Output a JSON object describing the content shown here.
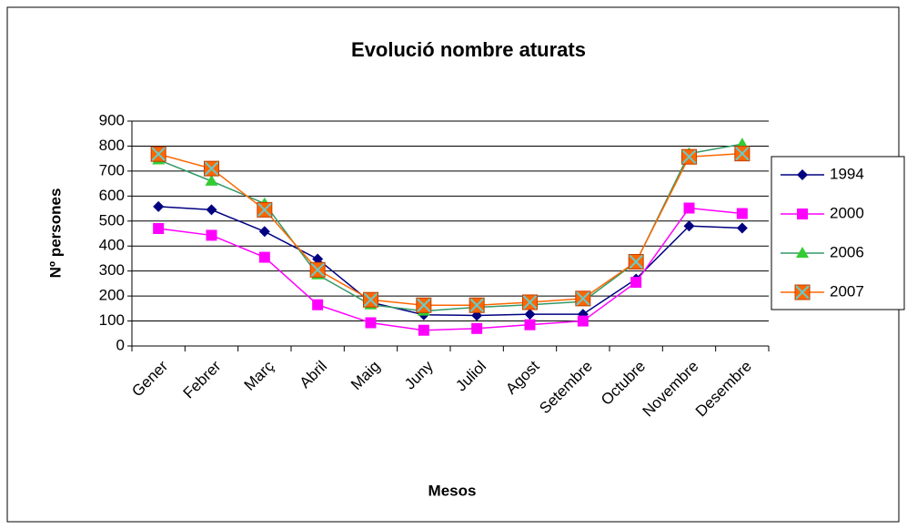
{
  "chart_data": {
    "type": "line",
    "title": "Evolució nombre aturats",
    "x_label": "Mesos",
    "y_label": "Nº persones",
    "categories": [
      "Gener",
      "Febrer",
      "Març",
      "Abril",
      "Maig",
      "Juny",
      "Juliol",
      "Agost",
      "Setembre",
      "Octubre",
      "Novembre",
      "Desembre"
    ],
    "series": [
      {
        "name": "1994",
        "color": "#000080",
        "marker": "diamond",
        "values": [
          558,
          545,
          458,
          348,
          175,
          125,
          122,
          127,
          127,
          268,
          480,
          472
        ]
      },
      {
        "name": "2000",
        "color": "#ff00ff",
        "marker": "square",
        "values": [
          470,
          443,
          355,
          165,
          93,
          63,
          70,
          85,
          100,
          255,
          552,
          530
        ]
      },
      {
        "name": "2006",
        "color": "#339966",
        "marker": "triangle",
        "values": [
          745,
          660,
          570,
          285,
          165,
          140,
          155,
          165,
          178,
          335,
          770,
          808
        ]
      },
      {
        "name": "2007",
        "color": "#ff6600",
        "marker": "square-x",
        "values": [
          768,
          710,
          545,
          305,
          185,
          163,
          163,
          175,
          190,
          337,
          757,
          770
        ]
      }
    ],
    "ylim": [
      0,
      900
    ],
    "yticks": [
      0,
      100,
      200,
      300,
      400,
      500,
      600,
      700,
      800,
      900
    ],
    "grid": true,
    "legend": "right"
  }
}
